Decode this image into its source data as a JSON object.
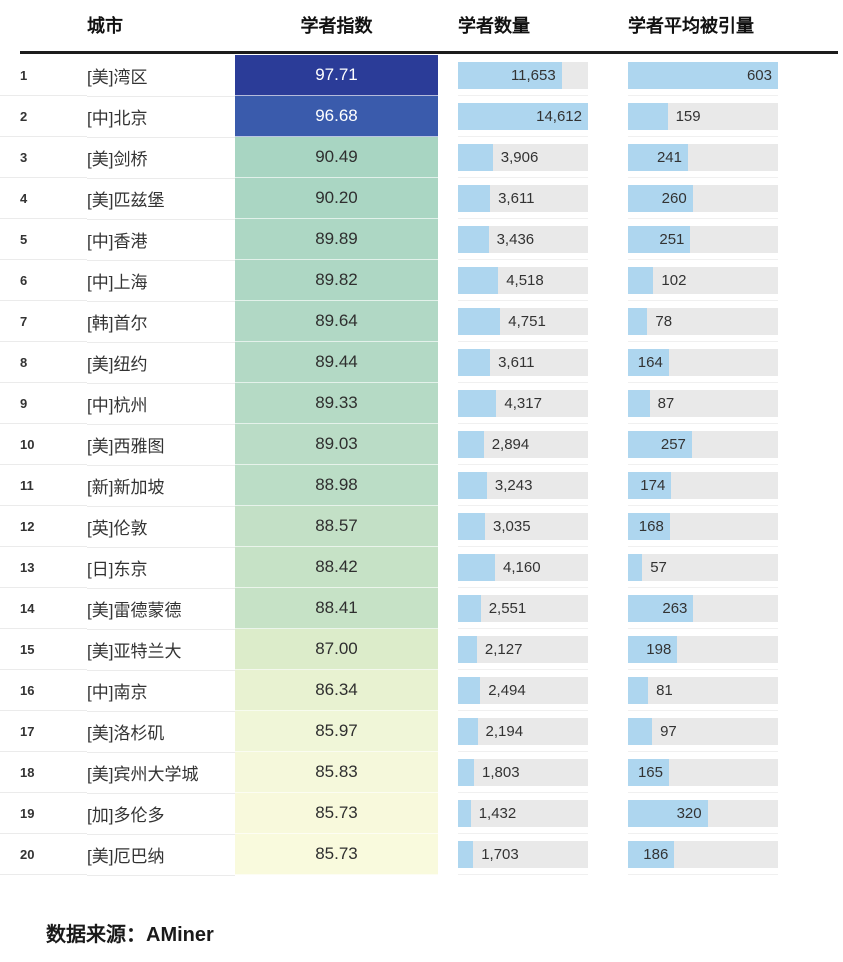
{
  "palette": {
    "bar_fill": "#aed6ef",
    "track_bg": "#e9e9e9",
    "header_line": "#1c1c1c",
    "dark_row_text": "#ffffff",
    "light_row_text": "#333333"
  },
  "chart_data": {
    "type": "table",
    "title": "",
    "columns": [
      "城市",
      "学者指数",
      "学者数量",
      "学者平均被引量"
    ],
    "scholars_max": 14612,
    "citations_max": 603,
    "source": "数据来源：AMiner",
    "rows": [
      {
        "rank": "1",
        "city": "[美]湾区",
        "index": "97.71",
        "index_bg": "#2b3c98",
        "index_fg": "#ffffff",
        "scholars": 11653,
        "scholars_label": "11,653",
        "citations": 603,
        "citations_label": "603"
      },
      {
        "rank": "2",
        "city": "[中]北京",
        "index": "96.68",
        "index_bg": "#3a5bac",
        "index_fg": "#ffffff",
        "scholars": 14612,
        "scholars_label": "14,612",
        "citations": 159,
        "citations_label": "159"
      },
      {
        "rank": "3",
        "city": "[美]剑桥",
        "index": "90.49",
        "index_bg": "#a8d5c2",
        "index_fg": "#2f2f2f",
        "scholars": 3906,
        "scholars_label": "3,906",
        "citations": 241,
        "citations_label": "241"
      },
      {
        "rank": "4",
        "city": "[美]匹兹堡",
        "index": "90.20",
        "index_bg": "#aad6c3",
        "index_fg": "#2f2f2f",
        "scholars": 3611,
        "scholars_label": "3,611",
        "citations": 260,
        "citations_label": "260"
      },
      {
        "rank": "5",
        "city": "[中]香港",
        "index": "89.89",
        "index_bg": "#add7c4",
        "index_fg": "#2f2f2f",
        "scholars": 3436,
        "scholars_label": "3,436",
        "citations": 251,
        "citations_label": "251"
      },
      {
        "rank": "6",
        "city": "[中]上海",
        "index": "89.82",
        "index_bg": "#aed7c4",
        "index_fg": "#2f2f2f",
        "scholars": 4518,
        "scholars_label": "4,518",
        "citations": 102,
        "citations_label": "102"
      },
      {
        "rank": "7",
        "city": "[韩]首尔",
        "index": "89.64",
        "index_bg": "#b1d8c5",
        "index_fg": "#2f2f2f",
        "scholars": 4751,
        "scholars_label": "4,751",
        "citations": 78,
        "citations_label": "78"
      },
      {
        "rank": "8",
        "city": "[美]纽约",
        "index": "89.44",
        "index_bg": "#b3d9c5",
        "index_fg": "#2f2f2f",
        "scholars": 3611,
        "scholars_label": "3,611",
        "citations": 164,
        "citations_label": "164"
      },
      {
        "rank": "9",
        "city": "[中]杭州",
        "index": "89.33",
        "index_bg": "#b5dac5",
        "index_fg": "#2f2f2f",
        "scholars": 4317,
        "scholars_label": "4,317",
        "citations": 87,
        "citations_label": "87"
      },
      {
        "rank": "10",
        "city": "[美]西雅图",
        "index": "89.03",
        "index_bg": "#badcc6",
        "index_fg": "#2f2f2f",
        "scholars": 2894,
        "scholars_label": "2,894",
        "citations": 257,
        "citations_label": "257"
      },
      {
        "rank": "11",
        "city": "[新]新加坡",
        "index": "88.98",
        "index_bg": "#bbddc6",
        "index_fg": "#2f2f2f",
        "scholars": 3243,
        "scholars_label": "3,243",
        "citations": 174,
        "citations_label": "174"
      },
      {
        "rank": "12",
        "city": "[英]伦敦",
        "index": "88.57",
        "index_bg": "#c3e0c6",
        "index_fg": "#2f2f2f",
        "scholars": 3035,
        "scholars_label": "3,035",
        "citations": 168,
        "citations_label": "168"
      },
      {
        "rank": "13",
        "city": "[日]东京",
        "index": "88.42",
        "index_bg": "#c6e2c6",
        "index_fg": "#2f2f2f",
        "scholars": 4160,
        "scholars_label": "4,160",
        "citations": 57,
        "citations_label": "57"
      },
      {
        "rank": "14",
        "city": "[美]雷德蒙德",
        "index": "88.41",
        "index_bg": "#c6e2c6",
        "index_fg": "#2f2f2f",
        "scholars": 2551,
        "scholars_label": "2,551",
        "citations": 263,
        "citations_label": "263"
      },
      {
        "rank": "15",
        "city": "[美]亚特兰大",
        "index": "87.00",
        "index_bg": "#dcecca",
        "index_fg": "#2f2f2f",
        "scholars": 2127,
        "scholars_label": "2,127",
        "citations": 198,
        "citations_label": "198"
      },
      {
        "rank": "16",
        "city": "[中]南京",
        "index": "86.34",
        "index_bg": "#e8f2d1",
        "index_fg": "#2f2f2f",
        "scholars": 2494,
        "scholars_label": "2,494",
        "citations": 81,
        "citations_label": "81"
      },
      {
        "rank": "17",
        "city": "[美]洛杉矶",
        "index": "85.97",
        "index_bg": "#f0f6d8",
        "index_fg": "#2f2f2f",
        "scholars": 2194,
        "scholars_label": "2,194",
        "citations": 97,
        "citations_label": "97"
      },
      {
        "rank": "18",
        "city": "[美]宾州大学城",
        "index": "85.83",
        "index_bg": "#f5f8db",
        "index_fg": "#2f2f2f",
        "scholars": 1803,
        "scholars_label": "1,803",
        "citations": 165,
        "citations_label": "165"
      },
      {
        "rank": "19",
        "city": "[加]多伦多",
        "index": "85.73",
        "index_bg": "#f8f9dc",
        "index_fg": "#2f2f2f",
        "scholars": 1432,
        "scholars_label": "1,432",
        "citations": 320,
        "citations_label": "320"
      },
      {
        "rank": "20",
        "city": "[美]厄巴纳",
        "index": "85.73",
        "index_bg": "#f9fadd",
        "index_fg": "#2f2f2f",
        "scholars": 1703,
        "scholars_label": "1,703",
        "citations": 186,
        "citations_label": "186"
      }
    ]
  }
}
